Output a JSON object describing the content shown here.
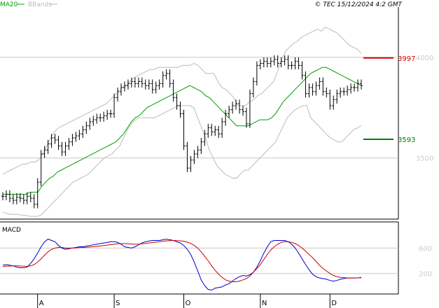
{
  "legend": {
    "ma_label": "MA20",
    "bbands_label": "BBands",
    "ma_color": "#00a000",
    "bbands_color": "#bbbbbb"
  },
  "copyright": "© TEC 15/12/2024 4:2 GMT",
  "macd_label": "MACD",
  "colors": {
    "price_bar": "#000000",
    "ma": "#00a000",
    "bbands": "#bbbbbb",
    "resistance": "#cc0000",
    "support": "#008000",
    "macd_line": "#0000cc",
    "signal_line": "#cc0000",
    "axis": "#000000",
    "grid": "#c8c8c8",
    "tick_text": "#cccccc"
  },
  "chart_data": [
    {
      "type": "ohlc",
      "title": "",
      "x_ticks": [
        "A",
        "S",
        "O",
        "N",
        "D"
      ],
      "x_tick_index": [
        10,
        32,
        52,
        74,
        94
      ],
      "n_bars": 104,
      "ylim": [
        3200,
        4250
      ],
      "y_ticks": [
        {
          "value": 3500,
          "label": "3500"
        },
        {
          "value": 4000,
          "label": "4000"
        }
      ],
      "levels": [
        {
          "name": "resistance",
          "value": 3997,
          "label": "3997",
          "color": "#cc0000"
        },
        {
          "name": "support",
          "value": 3593,
          "label": "3593",
          "color": "#008000"
        }
      ],
      "close": [
        3310,
        3320,
        3300,
        3290,
        3305,
        3300,
        3290,
        3310,
        3300,
        3270,
        3380,
        3520,
        3540,
        3570,
        3600,
        3590,
        3560,
        3530,
        3560,
        3580,
        3600,
        3610,
        3620,
        3640,
        3660,
        3680,
        3690,
        3700,
        3700,
        3710,
        3720,
        3720,
        3800,
        3830,
        3850,
        3860,
        3870,
        3880,
        3870,
        3880,
        3870,
        3860,
        3870,
        3840,
        3860,
        3870,
        3910,
        3920,
        3870,
        3800,
        3760,
        3720,
        3560,
        3450,
        3490,
        3520,
        3540,
        3580,
        3620,
        3650,
        3630,
        3640,
        3620,
        3680,
        3720,
        3740,
        3760,
        3770,
        3740,
        3730,
        3670,
        3820,
        3880,
        3960,
        3970,
        3980,
        3970,
        3980,
        3990,
        3970,
        3980,
        3990,
        3960,
        3960,
        3980,
        3960,
        3910,
        3820,
        3850,
        3830,
        3860,
        3880,
        3830,
        3820,
        3760,
        3790,
        3820,
        3830,
        3830,
        3840,
        3850,
        3850,
        3870,
        3860
      ],
      "y_range_per_bar": 40,
      "bbands_upper": [
        3420,
        3430,
        3440,
        3450,
        3460,
        3470,
        3470,
        3480,
        3480,
        3490,
        3520,
        3560,
        3600,
        3630,
        3650,
        3660,
        3670,
        3680,
        3690,
        3700,
        3710,
        3720,
        3730,
        3740,
        3750,
        3760,
        3770,
        3790,
        3810,
        3830,
        3850,
        3860,
        3880,
        3900,
        3910,
        3920,
        3930,
        3940,
        3940,
        3950,
        3950,
        3950,
        3950,
        3950,
        3950,
        3960,
        3960,
        3960,
        3970,
        3960,
        3940,
        3920,
        3920,
        3920,
        3880,
        3850,
        3840,
        3820,
        3800,
        3760,
        3760,
        3760,
        3780,
        3790,
        3810,
        3820,
        3840,
        3860,
        3880,
        3930,
        3990,
        4030,
        4050,
        4070,
        4080,
        4100,
        4110,
        4120,
        4130,
        4140,
        4130,
        4150,
        4140,
        4130,
        4120,
        4100,
        4080,
        4060,
        4050,
        4040,
        4020
      ],
      "ma20": [
        3320,
        3320,
        3320,
        3320,
        3320,
        3320,
        3320,
        3330,
        3330,
        3330,
        3360,
        3380,
        3400,
        3410,
        3430,
        3440,
        3450,
        3460,
        3470,
        3480,
        3490,
        3500,
        3510,
        3520,
        3530,
        3540,
        3550,
        3560,
        3570,
        3580,
        3600,
        3620,
        3650,
        3680,
        3700,
        3710,
        3730,
        3750,
        3760,
        3770,
        3780,
        3790,
        3800,
        3810,
        3820,
        3830,
        3840,
        3850,
        3860,
        3850,
        3840,
        3830,
        3810,
        3800,
        3780,
        3760,
        3740,
        3720,
        3700,
        3680,
        3660,
        3660,
        3660,
        3660,
        3670,
        3680,
        3690,
        3690,
        3690,
        3700,
        3720,
        3750,
        3780,
        3800,
        3820,
        3840,
        3860,
        3880,
        3900,
        3920,
        3930,
        3940,
        3950,
        3950,
        3940,
        3930,
        3920,
        3910,
        3900,
        3890,
        3880,
        3870,
        3860
      ],
      "bbands_lower": [
        3230,
        3225,
        3220,
        3220,
        3220,
        3215,
        3215,
        3210,
        3210,
        3210,
        3220,
        3240,
        3260,
        3280,
        3300,
        3320,
        3340,
        3360,
        3380,
        3390,
        3400,
        3410,
        3420,
        3440,
        3460,
        3480,
        3500,
        3510,
        3520,
        3540,
        3560,
        3600,
        3640,
        3670,
        3690,
        3700,
        3700,
        3700,
        3700,
        3700,
        3710,
        3720,
        3730,
        3740,
        3750,
        3760,
        3760,
        3760,
        3760,
        3750,
        3700,
        3650,
        3600,
        3540,
        3500,
        3460,
        3440,
        3420,
        3410,
        3400,
        3400,
        3420,
        3440,
        3440,
        3460,
        3480,
        3500,
        3520,
        3540,
        3560,
        3580,
        3620,
        3660,
        3700,
        3720,
        3740,
        3750,
        3760,
        3760,
        3700,
        3680,
        3660,
        3640,
        3620,
        3600,
        3590,
        3580,
        3580,
        3600,
        3620,
        3640,
        3650,
        3660
      ]
    },
    {
      "type": "line",
      "title": "MACD",
      "x_ticks": [
        "A",
        "S",
        "O",
        "N",
        "D"
      ],
      "ylim": [
        -100,
        1000
      ],
      "y_ticks": [
        {
          "value": 200,
          "label": "200"
        },
        {
          "value": 600,
          "label": "600"
        }
      ],
      "series": [
        {
          "name": "",
          "color": "#0000cc",
          "values": [
            330,
            340,
            330,
            320,
            300,
            290,
            290,
            300,
            360,
            430,
            520,
            620,
            700,
            740,
            720,
            700,
            640,
            600,
            580,
            590,
            600,
            610,
            620,
            620,
            630,
            640,
            650,
            660,
            670,
            680,
            690,
            700,
            700,
            690,
            660,
            620,
            610,
            600,
            620,
            650,
            680,
            700,
            710,
            720,
            720,
            720,
            730,
            740,
            730,
            720,
            700,
            680,
            640,
            580,
            500,
            380,
            240,
            100,
            10,
            -50,
            -60,
            -30,
            -20,
            -10,
            20,
            40,
            80,
            120,
            150,
            170,
            160,
            180,
            220,
            300,
            400,
            520,
            620,
            700,
            720,
            720,
            720,
            720,
            700,
            660,
            600,
            520,
            430,
            340,
            260,
            190,
            150,
            130,
            120,
            110,
            90,
            80,
            90,
            110,
            120,
            130,
            130,
            130,
            130,
            140
          ]
        },
        {
          "name": "",
          "color": "#cc0000",
          "values": [
            310,
            315,
            318,
            320,
            320,
            318,
            315,
            312,
            320,
            340,
            380,
            430,
            490,
            540,
            580,
            600,
            610,
            610,
            600,
            600,
            600,
            603,
            607,
            610,
            613,
            617,
            620,
            627,
            633,
            640,
            647,
            653,
            660,
            667,
            670,
            670,
            667,
            663,
            660,
            662,
            667,
            673,
            680,
            687,
            693,
            700,
            707,
            713,
            717,
            720,
            717,
            713,
            707,
            693,
            673,
            640,
            600,
            540,
            470,
            400,
            320,
            250,
            190,
            140,
            100,
            80,
            70,
            70,
            80,
            100,
            120,
            160,
            220,
            280,
            340,
            420,
            500,
            570,
            620,
            660,
            690,
            700,
            700,
            690,
            670,
            640,
            600,
            550,
            500,
            450,
            390,
            330,
            280,
            240,
            200,
            170,
            150,
            140,
            135,
            130,
            130,
            130,
            131,
            132
          ]
        }
      ]
    }
  ]
}
